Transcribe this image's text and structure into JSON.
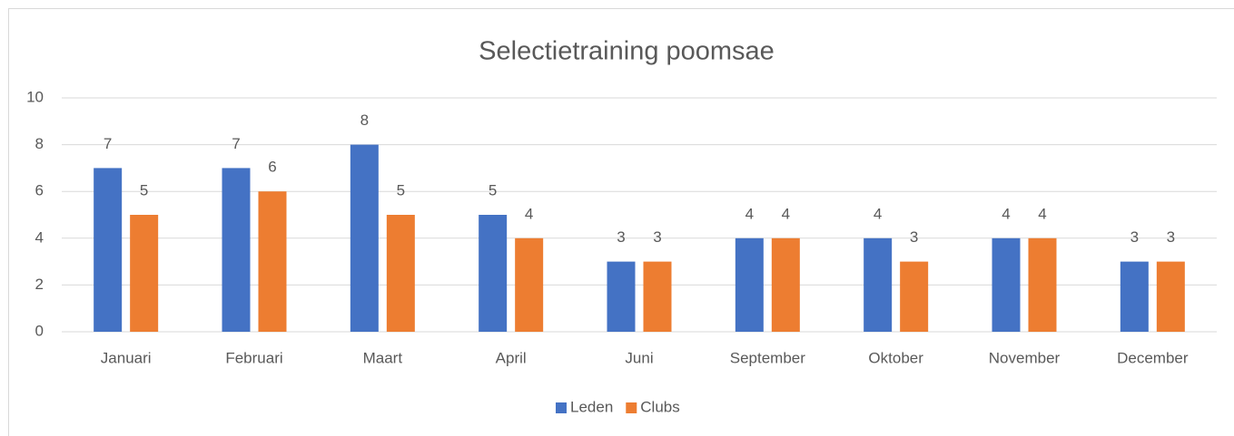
{
  "chart_data": {
    "type": "bar",
    "title": "Selectietraining poomsae",
    "categories": [
      "Januari",
      "Februari",
      "Maart",
      "April",
      "Juni",
      "September",
      "Oktober",
      "November",
      "December"
    ],
    "series": [
      {
        "name": "Leden",
        "color": "#4472c4",
        "values": [
          7,
          7,
          8,
          5,
          3,
          4,
          4,
          4,
          3
        ]
      },
      {
        "name": "Clubs",
        "color": "#ed7d31",
        "values": [
          5,
          6,
          5,
          4,
          3,
          4,
          3,
          4,
          3
        ]
      }
    ],
    "ylim": [
      0,
      10
    ],
    "yticks": [
      0,
      2,
      4,
      6,
      8,
      10
    ],
    "grid": true,
    "legend": "bottom"
  }
}
